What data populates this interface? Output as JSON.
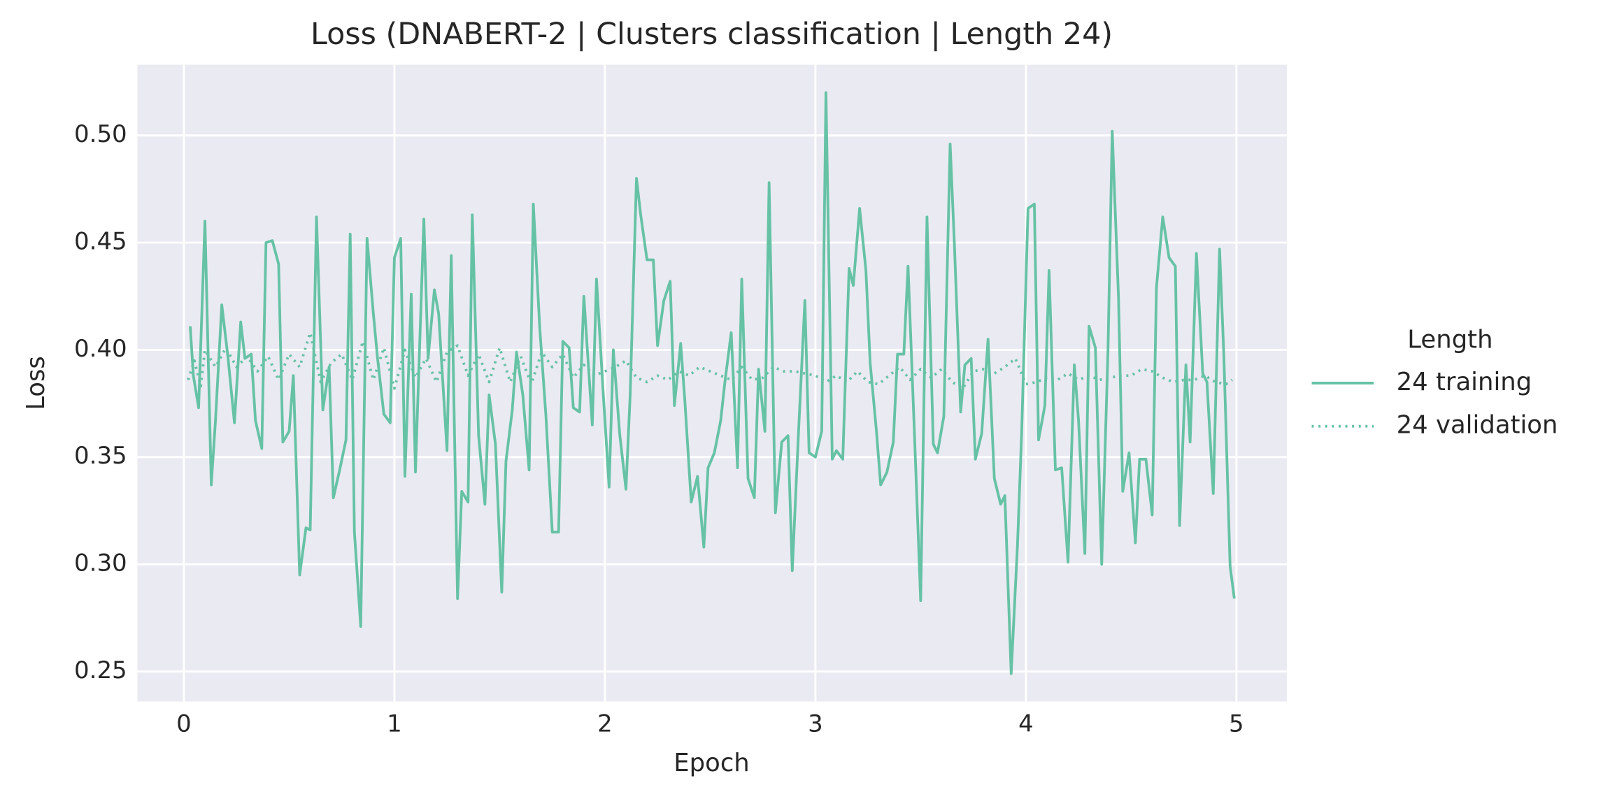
{
  "chart_data": {
    "type": "line",
    "title": "Loss (DNABERT-2 | Clusters classification | Length 24)",
    "x_label": "Epoch",
    "y_label": "Loss",
    "xlim": [
      -0.221,
      5.24
    ],
    "ylim": [
      0.236,
      0.533
    ],
    "xticks": [
      0,
      1,
      2,
      3,
      4,
      5
    ],
    "yticks": [
      0.25,
      {
        "value": 0.3,
        "label": "0.30"
      },
      0.35,
      {
        "value": 0.4,
        "label": "0.40"
      },
      0.45,
      {
        "value": 0.5,
        "label": "0.50"
      }
    ],
    "grid": true,
    "legend_title": "Length",
    "legend_position": "right",
    "series": [
      {
        "name": "24 training",
        "color": "#66c2a5",
        "style": "solid",
        "x": [
          0.03,
          0.045,
          0.07,
          0.1,
          0.13,
          0.15,
          0.18,
          0.21,
          0.24,
          0.27,
          0.29,
          0.32,
          0.34,
          0.37,
          0.39,
          0.42,
          0.45,
          0.47,
          0.5,
          0.52,
          0.55,
          0.58,
          0.6,
          0.63,
          0.66,
          0.69,
          0.71,
          0.74,
          0.77,
          0.79,
          0.81,
          0.84,
          0.87,
          0.9,
          0.92,
          0.95,
          0.98,
          1.0,
          1.03,
          1.05,
          1.08,
          1.1,
          1.14,
          1.16,
          1.19,
          1.21,
          1.25,
          1.27,
          1.3,
          1.32,
          1.35,
          1.37,
          1.4,
          1.43,
          1.45,
          1.48,
          1.51,
          1.53,
          1.56,
          1.58,
          1.61,
          1.64,
          1.66,
          1.69,
          1.72,
          1.75,
          1.78,
          1.8,
          1.83,
          1.85,
          1.88,
          1.9,
          1.94,
          1.96,
          1.99,
          2.02,
          2.04,
          2.07,
          2.1,
          2.12,
          2.15,
          2.17,
          2.2,
          2.23,
          2.25,
          2.28,
          2.31,
          2.33,
          2.36,
          2.38,
          2.41,
          2.44,
          2.47,
          2.49,
          2.52,
          2.55,
          2.57,
          2.6,
          2.63,
          2.65,
          2.68,
          2.71,
          2.73,
          2.76,
          2.78,
          2.81,
          2.84,
          2.87,
          2.89,
          2.92,
          2.95,
          2.97,
          3.0,
          3.03,
          3.05,
          3.08,
          3.1,
          3.13,
          3.16,
          3.18,
          3.21,
          3.24,
          3.26,
          3.29,
          3.31,
          3.34,
          3.37,
          3.39,
          3.42,
          3.44,
          3.47,
          3.5,
          3.53,
          3.56,
          3.58,
          3.61,
          3.64,
          3.66,
          3.69,
          3.71,
          3.74,
          3.76,
          3.79,
          3.82,
          3.85,
          3.88,
          3.9,
          3.93,
          3.96,
          3.98,
          4.01,
          4.04,
          4.06,
          4.09,
          4.11,
          4.14,
          4.17,
          4.2,
          4.23,
          4.25,
          4.28,
          4.3,
          4.33,
          4.36,
          4.39,
          4.41,
          4.44,
          4.46,
          4.49,
          4.52,
          4.54,
          4.57,
          4.6,
          4.62,
          4.65,
          4.68,
          4.71,
          4.73,
          4.76,
          4.78,
          4.81,
          4.84,
          4.86,
          4.89,
          4.92,
          4.94,
          4.97,
          4.99
        ],
        "values": [
          0.411,
          0.388,
          0.373,
          0.46,
          0.337,
          0.367,
          0.421,
          0.396,
          0.366,
          0.413,
          0.396,
          0.398,
          0.367,
          0.354,
          0.45,
          0.451,
          0.44,
          0.357,
          0.362,
          0.388,
          0.295,
          0.317,
          0.316,
          0.462,
          0.372,
          0.392,
          0.331,
          0.344,
          0.358,
          0.454,
          0.315,
          0.271,
          0.452,
          0.417,
          0.396,
          0.37,
          0.366,
          0.443,
          0.452,
          0.341,
          0.426,
          0.343,
          0.461,
          0.396,
          0.428,
          0.417,
          0.353,
          0.444,
          0.284,
          0.334,
          0.329,
          0.463,
          0.36,
          0.328,
          0.379,
          0.356,
          0.287,
          0.348,
          0.372,
          0.399,
          0.379,
          0.344,
          0.468,
          0.411,
          0.369,
          0.315,
          0.315,
          0.404,
          0.401,
          0.373,
          0.371,
          0.425,
          0.365,
          0.433,
          0.383,
          0.336,
          0.4,
          0.361,
          0.335,
          0.379,
          0.48,
          0.463,
          0.442,
          0.442,
          0.402,
          0.423,
          0.432,
          0.374,
          0.403,
          0.376,
          0.329,
          0.341,
          0.308,
          0.345,
          0.352,
          0.367,
          0.385,
          0.408,
          0.345,
          0.433,
          0.34,
          0.331,
          0.391,
          0.362,
          0.478,
          0.324,
          0.357,
          0.36,
          0.297,
          0.362,
          0.423,
          0.352,
          0.35,
          0.362,
          0.52,
          0.349,
          0.353,
          0.349,
          0.438,
          0.43,
          0.466,
          0.437,
          0.394,
          0.362,
          0.337,
          0.343,
          0.357,
          0.398,
          0.398,
          0.439,
          0.362,
          0.283,
          0.462,
          0.356,
          0.352,
          0.369,
          0.496,
          0.45,
          0.371,
          0.393,
          0.396,
          0.349,
          0.361,
          0.405,
          0.34,
          0.328,
          0.332,
          0.249,
          0.309,
          0.362,
          0.466,
          0.468,
          0.358,
          0.374,
          0.437,
          0.344,
          0.345,
          0.301,
          0.393,
          0.367,
          0.305,
          0.411,
          0.401,
          0.3,
          0.4,
          0.502,
          0.424,
          0.334,
          0.352,
          0.31,
          0.349,
          0.349,
          0.323,
          0.429,
          0.462,
          0.443,
          0.439,
          0.318,
          0.393,
          0.357,
          0.445,
          0.389,
          0.385,
          0.333,
          0.447,
          0.398,
          0.299,
          0.284
        ]
      },
      {
        "name": "24 validation",
        "color": "#66c2a5",
        "style": "dotted",
        "x": [
          0.02,
          0.05,
          0.08,
          0.1,
          0.15,
          0.2,
          0.25,
          0.3,
          0.35,
          0.4,
          0.45,
          0.5,
          0.55,
          0.6,
          0.65,
          0.7,
          0.75,
          0.8,
          0.85,
          0.9,
          0.95,
          1.0,
          1.05,
          1.1,
          1.15,
          1.2,
          1.25,
          1.3,
          1.35,
          1.4,
          1.45,
          1.5,
          1.55,
          1.6,
          1.65,
          1.7,
          1.75,
          1.8,
          1.85,
          1.9,
          1.95,
          2.0,
          2.05,
          2.1,
          2.15,
          2.2,
          2.25,
          2.3,
          2.35,
          2.4,
          2.45,
          2.5,
          2.55,
          2.6,
          2.65,
          2.7,
          2.75,
          2.8,
          2.85,
          2.9,
          2.95,
          3.0,
          3.05,
          3.1,
          3.15,
          3.2,
          3.25,
          3.3,
          3.35,
          3.4,
          3.45,
          3.5,
          3.55,
          3.6,
          3.65,
          3.7,
          3.75,
          3.8,
          3.85,
          3.9,
          3.95,
          4.0,
          4.05,
          4.1,
          4.15,
          4.2,
          4.25,
          4.3,
          4.35,
          4.4,
          4.45,
          4.5,
          4.55,
          4.6,
          4.65,
          4.7,
          4.75,
          4.8,
          4.85,
          4.9,
          4.95,
          4.98
        ],
        "values": [
          0.386,
          0.395,
          0.383,
          0.4,
          0.392,
          0.401,
          0.392,
          0.397,
          0.39,
          0.397,
          0.386,
          0.398,
          0.392,
          0.408,
          0.385,
          0.394,
          0.398,
          0.386,
          0.404,
          0.386,
          0.401,
          0.382,
          0.4,
          0.387,
          0.396,
          0.385,
          0.399,
          0.402,
          0.388,
          0.398,
          0.385,
          0.401,
          0.385,
          0.397,
          0.384,
          0.399,
          0.392,
          0.398,
          0.387,
          0.393,
          0.388,
          0.39,
          0.392,
          0.395,
          0.387,
          0.385,
          0.388,
          0.386,
          0.39,
          0.388,
          0.392,
          0.39,
          0.388,
          0.386,
          0.392,
          0.386,
          0.387,
          0.392,
          0.39,
          0.39,
          0.389,
          0.388,
          0.385,
          0.388,
          0.385,
          0.39,
          0.385,
          0.384,
          0.388,
          0.392,
          0.386,
          0.391,
          0.387,
          0.391,
          0.385,
          0.382,
          0.39,
          0.391,
          0.389,
          0.392,
          0.396,
          0.384,
          0.385,
          0.387,
          0.386,
          0.389,
          0.386,
          0.388,
          0.386,
          0.387,
          0.388,
          0.388,
          0.391,
          0.39,
          0.387,
          0.385,
          0.386,
          0.386,
          0.388,
          0.385,
          0.384,
          0.386
        ]
      }
    ]
  }
}
